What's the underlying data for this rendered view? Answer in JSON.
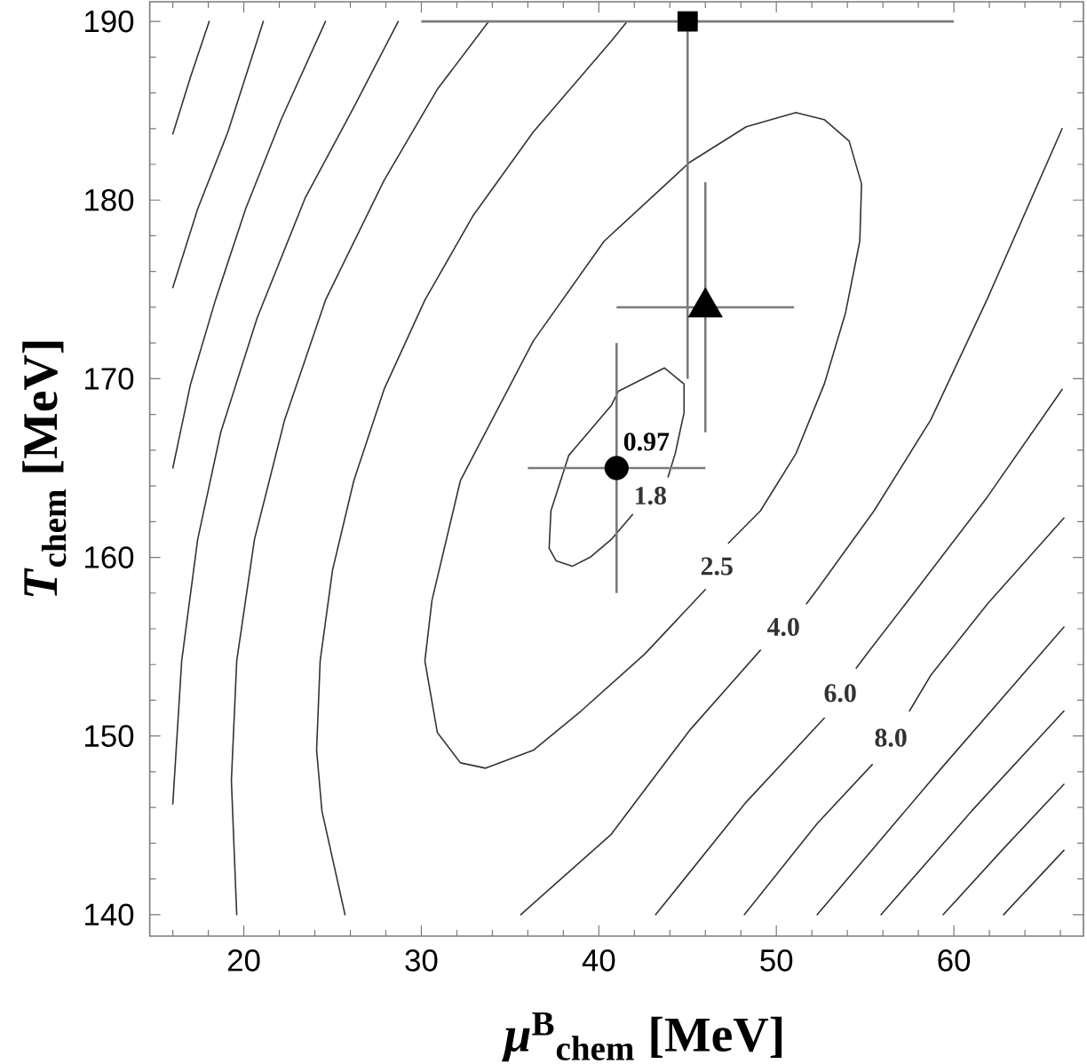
{
  "chart_data": {
    "type": "line",
    "xlabel": "*μ*$^{B}$$_{chem}$ [MeV]",
    "ylabel": "*T*$_{chem}$ [MeV]",
    "xlim": [
      14.7,
      67.3
    ],
    "ylim": [
      138.8,
      191.1
    ],
    "xticks": [
      {
        "value": 16,
        "label": null
      },
      {
        "value": 18,
        "label": null
      },
      20,
      {
        "value": 22,
        "label": null
      },
      {
        "value": 24,
        "label": null
      },
      {
        "value": 26,
        "label": null
      },
      {
        "value": 28,
        "label": null
      },
      30,
      {
        "value": 32,
        "label": null
      },
      {
        "value": 34,
        "label": null
      },
      {
        "value": 36,
        "label": null
      },
      {
        "value": 38,
        "label": null
      },
      40,
      {
        "value": 42,
        "label": null
      },
      {
        "value": 44,
        "label": null
      },
      {
        "value": 46,
        "label": null
      },
      {
        "value": 48,
        "label": null
      },
      50,
      {
        "value": 52,
        "label": null
      },
      {
        "value": 54,
        "label": null
      },
      {
        "value": 56,
        "label": null
      },
      {
        "value": 58,
        "label": null
      },
      60,
      {
        "value": 62,
        "label": null
      },
      {
        "value": 64,
        "label": null
      },
      {
        "value": 66,
        "label": null
      }
    ],
    "yticks": [
      140,
      {
        "value": 142,
        "label": null
      },
      {
        "value": 144,
        "label": null
      },
      {
        "value": 146,
        "label": null
      },
      {
        "value": 148,
        "label": null
      },
      150,
      {
        "value": 152,
        "label": null
      },
      {
        "value": 154,
        "label": null
      },
      {
        "value": 156,
        "label": null
      },
      {
        "value": 158,
        "label": null
      },
      160,
      {
        "value": 162,
        "label": null
      },
      {
        "value": 164,
        "label": null
      },
      {
        "value": 166,
        "label": null
      },
      {
        "value": 168,
        "label": null
      },
      170,
      {
        "value": 172,
        "label": null
      },
      {
        "value": 174,
        "label": null
      },
      {
        "value": 176,
        "label": null
      },
      {
        "value": 178,
        "label": null
      },
      180,
      {
        "value": 182,
        "label": null
      },
      {
        "value": 184,
        "label": null
      },
      {
        "value": 186,
        "label": null
      },
      {
        "value": 188,
        "label": null
      },
      190
    ],
    "series": [
      {
        "color": "#333333",
        "x": [
          16.0,
          17.0,
          18.05
        ],
        "values": [
          183.7,
          186.9,
          190
        ]
      },
      {
        "color": "#333333",
        "x": [
          16.0,
          17.4,
          19.1,
          21.1
        ],
        "values": [
          175.1,
          179.5,
          183.8,
          190
        ]
      },
      {
        "color": "#333333",
        "x": [
          16.0,
          17.0,
          18.4,
          20.1,
          22.1,
          24.6
        ],
        "values": [
          165.0,
          169.7,
          174.4,
          179.5,
          184.5,
          190
        ]
      },
      {
        "color": "#333333",
        "x": [
          16.0,
          16.5,
          17.4,
          18.7,
          20.75,
          23.45,
          26.2,
          28.7
        ],
        "values": [
          146.2,
          154.2,
          161.0,
          167.0,
          173.4,
          180.1,
          185.2,
          190
        ]
      },
      {
        "color": "#333333",
        "x": [
          19.6,
          19.3,
          19.6,
          20.6,
          22.3,
          24.6,
          27.9,
          30.9,
          33.8
        ],
        "values": [
          140,
          147.5,
          154.2,
          161.0,
          167.7,
          174.4,
          181.1,
          186.2,
          190
        ]
      },
      {
        "color": "#333333",
        "x": [
          25.7,
          24.4,
          24.1,
          24.3,
          25.0,
          26.2,
          27.9,
          30.2,
          32.9,
          36.3,
          40.7,
          41.6
        ],
        "values": [
          140,
          145.8,
          149.2,
          154.2,
          159.3,
          164.3,
          169.4,
          174.4,
          179.1,
          183.8,
          188.9,
          190
        ]
      },
      {
        "name": "2.5",
        "color": "#333333",
        "x": [
          32.2,
          36.3,
          40.3,
          45.1,
          48.3,
          51.1,
          52.7,
          54.1,
          54.8,
          54.7,
          53.9,
          52.7,
          51.1,
          49.1,
          47.3,
          null,
          46.0,
          42.6,
          39.0,
          36.3,
          33.6,
          32.2,
          30.9,
          30.2,
          30.6,
          32.2
        ],
        "values": [
          164.3,
          172.1,
          177.7,
          182.1,
          184.1,
          184.9,
          184.5,
          183.3,
          180.9,
          177.7,
          173.7,
          169.7,
          165.8,
          162.6,
          160.8,
          null,
          158.2,
          154.6,
          151.4,
          149.2,
          148.2,
          148.5,
          150.2,
          154.2,
          157.6,
          164.3
        ]
      },
      {
        "name": "1.8",
        "color": "#333333",
        "x": [
          37.2,
          37.3,
          38.3,
          40.7,
          41.1,
          43.7,
          44.8,
          44.8,
          44.3,
          43.9,
          null,
          41.9,
          40.7,
          39.5,
          38.5,
          37.6,
          37.2
        ],
        "values": [
          160.5,
          162.6,
          165.7,
          168.5,
          169.3,
          170.6,
          169.7,
          168.1,
          165.8,
          164.5,
          null,
          162.4,
          161.0,
          160.0,
          159.5,
          159.8,
          160.5
        ]
      },
      {
        "name": "4.0",
        "color": "#333333",
        "x": [
          66.1,
          61.9,
          58.7,
          55.5,
          52.3,
          51.7,
          null,
          49.1,
          45.1,
          40.7,
          35.6
        ],
        "values": [
          184.0,
          174.5,
          167.7,
          162.6,
          158.2,
          157.4,
          null,
          154.8,
          150.3,
          144.5,
          140
        ]
      },
      {
        "name": "6.0",
        "color": "#333333",
        "x": [
          66.1,
          61.9,
          57.9,
          55.1,
          54.5,
          null,
          52.7,
          48.3,
          43.2
        ],
        "values": [
          169.4,
          163.4,
          158.2,
          154.6,
          153.8,
          null,
          151.0,
          146.3,
          140
        ]
      },
      {
        "name": "8.0",
        "color": "#333333",
        "x": [
          66.2,
          61.9,
          58.7,
          57.5,
          null,
          55.4,
          52.3,
          48.2
        ],
        "values": [
          162.2,
          157.4,
          153.4,
          151.4,
          null,
          148.4,
          145.1,
          140
        ]
      },
      {
        "color": "#333333",
        "x": [
          66.2,
          59.3,
          52.3
        ],
        "values": [
          156.1,
          148.2,
          140
        ]
      },
      {
        "color": "#333333",
        "x": [
          66.2,
          61.0,
          55.9
        ],
        "values": [
          151.4,
          145.8,
          140
        ]
      },
      {
        "color": "#333333",
        "x": [
          66.2,
          62.8,
          59.4
        ],
        "values": [
          147.3,
          143.7,
          140
        ]
      },
      {
        "color": "#333333",
        "x": [
          66.2,
          64.5,
          62.8
        ],
        "values": [
          143.6,
          141.8,
          140
        ]
      },
      {
        "type": "scatter",
        "color": "#000000",
        "marker": "circle",
        "x": [
          41
        ],
        "values": [
          165
        ],
        "errors": [
          7
        ],
        "xerrors": [
          5
        ]
      },
      {
        "type": "scatter",
        "color": "#000000",
        "marker": "triangle",
        "x": [
          46
        ],
        "values": [
          174
        ],
        "errors": [
          7
        ],
        "xerrors": [
          5
        ]
      },
      {
        "type": "scatter",
        "color": "#000000",
        "marker": "square",
        "x": [
          45
        ],
        "values": [
          190
        ],
        "errors": [
          [
            170,
            190
          ]
        ],
        "xerrors": [
          15
        ]
      }
    ],
    "annotations": [
      {
        "text": "0.97",
        "x": 41,
        "y": 165
      }
    ]
  }
}
